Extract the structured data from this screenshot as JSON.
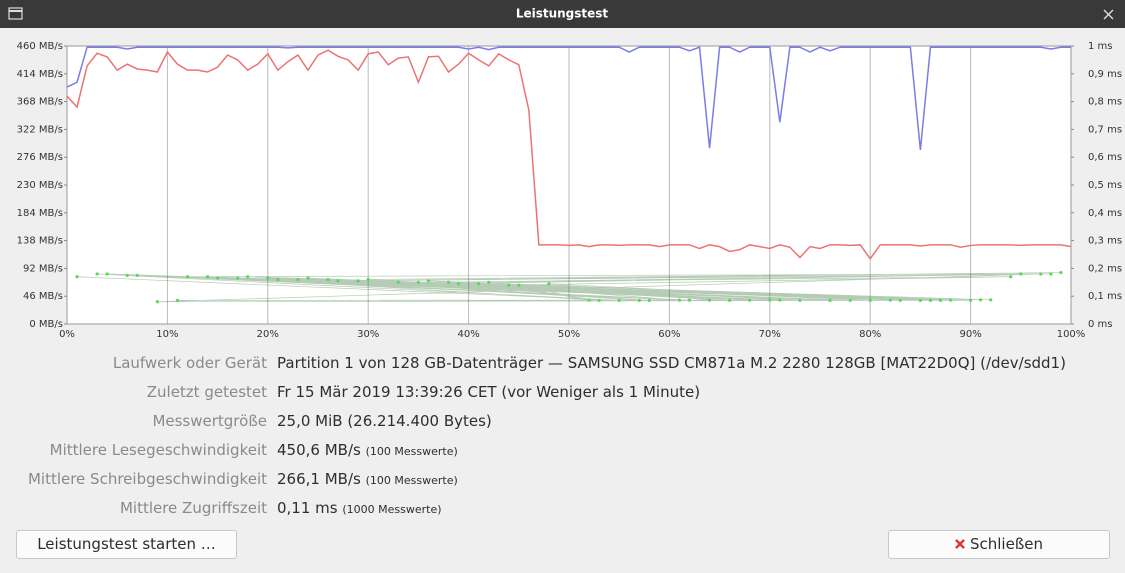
{
  "window": {
    "title": "Leistungstest"
  },
  "chart_data": {
    "type": "line",
    "x": [
      0,
      1,
      2,
      3,
      4,
      5,
      6,
      7,
      8,
      9,
      10,
      11,
      12,
      13,
      14,
      15,
      16,
      17,
      18,
      19,
      20,
      21,
      22,
      23,
      24,
      25,
      26,
      27,
      28,
      29,
      30,
      31,
      32,
      33,
      34,
      35,
      36,
      37,
      38,
      39,
      40,
      41,
      42,
      43,
      44,
      45,
      46,
      47,
      48,
      49,
      50,
      51,
      52,
      53,
      54,
      55,
      56,
      57,
      58,
      59,
      60,
      61,
      62,
      63,
      64,
      65,
      66,
      67,
      68,
      69,
      70,
      71,
      72,
      73,
      74,
      75,
      76,
      77,
      78,
      79,
      80,
      81,
      82,
      83,
      84,
      85,
      86,
      87,
      88,
      89,
      90,
      91,
      92,
      93,
      94,
      95,
      96,
      97,
      98,
      99,
      100
    ],
    "xlim": [
      0,
      100
    ],
    "xticks": [
      {
        "value": 0,
        "label": "0%"
      },
      {
        "value": 10,
        "label": "10%"
      },
      {
        "value": 20,
        "label": "20%"
      },
      {
        "value": 30,
        "label": "30%"
      },
      {
        "value": 40,
        "label": "40%"
      },
      {
        "value": 50,
        "label": "50%"
      },
      {
        "value": 60,
        "label": "60%"
      },
      {
        "value": 70,
        "label": "70%"
      },
      {
        "value": 80,
        "label": "80%"
      },
      {
        "value": 90,
        "label": "90%"
      },
      {
        "value": 100,
        "label": "100%"
      }
    ],
    "ylim": [
      0,
      460
    ],
    "yticks": [
      {
        "value": 0,
        "label": "0 MB/s"
      },
      {
        "value": 46,
        "label": "46 MB/s"
      },
      {
        "value": 92,
        "label": "92 MB/s"
      },
      {
        "value": 138,
        "label": "138 MB/s"
      },
      {
        "value": 184,
        "label": "184 MB/s"
      },
      {
        "value": 230,
        "label": "230 MB/s"
      },
      {
        "value": 276,
        "label": "276 MB/s"
      },
      {
        "value": 322,
        "label": "322 MB/s"
      },
      {
        "value": 368,
        "label": "368 MB/s"
      },
      {
        "value": 414,
        "label": "414 MB/s"
      },
      {
        "value": 460,
        "label": "460 MB/s"
      }
    ],
    "y2lim": [
      0,
      1
    ],
    "y2ticks": [
      {
        "value": 0,
        "label": "0 ms"
      },
      {
        "value": 0.1,
        "label": "0,1 ms"
      },
      {
        "value": 0.2,
        "label": "0,2 ms"
      },
      {
        "value": 0.3,
        "label": "0,3 ms"
      },
      {
        "value": 0.4,
        "label": "0,4 ms"
      },
      {
        "value": 0.5,
        "label": "0,5 ms"
      },
      {
        "value": 0.6,
        "label": "0,6 ms"
      },
      {
        "value": 0.7,
        "label": "0,7 ms"
      },
      {
        "value": 0.8,
        "label": "0,8 ms"
      },
      {
        "value": 0.9,
        "label": "0,9 ms"
      },
      {
        "value": 1,
        "label": "1 ms"
      }
    ],
    "grid": true,
    "series": [
      {
        "color": "#7b7bea",
        "values": [
          392,
          400,
          458,
          458,
          458,
          458,
          455,
          458,
          458,
          458,
          458,
          458,
          458,
          458,
          458,
          458,
          458,
          458,
          458,
          458,
          458,
          458,
          457,
          458,
          458,
          458,
          458,
          458,
          458,
          458,
          458,
          458,
          458,
          458,
          458,
          458,
          458,
          458,
          458,
          458,
          455,
          458,
          454,
          458,
          458,
          458,
          458,
          458,
          458,
          458,
          458,
          458,
          458,
          458,
          458,
          458,
          450,
          458,
          458,
          458,
          458,
          458,
          452,
          458,
          291,
          458,
          458,
          450,
          458,
          458,
          458,
          334,
          458,
          458,
          450,
          458,
          452,
          458,
          458,
          458,
          458,
          458,
          458,
          458,
          458,
          288,
          458,
          458,
          458,
          458,
          458,
          458,
          458,
          458,
          458,
          458,
          458,
          458,
          455,
          458,
          458
        ]
      },
      {
        "color": "#ec7373",
        "values": [
          377,
          359,
          427,
          448,
          442,
          420,
          430,
          422,
          420,
          417,
          450,
          430,
          420,
          420,
          417,
          425,
          445,
          437,
          420,
          430,
          447,
          420,
          434,
          445,
          420,
          445,
          453,
          443,
          437,
          420,
          447,
          450,
          429,
          440,
          442,
          400,
          442,
          443,
          417,
          430,
          448,
          437,
          427,
          447,
          437,
          429,
          354,
          131,
          131,
          131,
          130,
          131,
          128,
          131,
          131,
          130,
          131,
          131,
          131,
          128,
          131,
          131,
          131,
          125,
          131,
          128,
          120,
          123,
          131,
          128,
          125,
          131,
          127,
          110,
          128,
          125,
          131,
          131,
          130,
          131,
          108,
          131,
          131,
          131,
          131,
          129,
          131,
          131,
          131,
          127,
          130,
          131,
          131,
          131,
          131,
          130,
          131,
          131,
          131,
          131,
          128
        ]
      },
      {
        "color": "#5ad85a",
        "type": "scatter",
        "axis": "y2",
        "x": [
          1,
          55,
          3,
          70,
          6,
          85,
          9,
          97,
          12,
          62,
          15,
          78,
          18,
          92,
          21,
          58,
          24,
          82,
          27,
          99,
          30,
          66,
          33,
          88,
          36,
          73,
          39,
          95,
          42,
          52,
          45,
          80,
          48,
          64,
          11,
          90,
          20,
          71,
          4,
          86,
          26,
          57,
          35,
          94,
          44,
          68,
          14,
          83,
          29,
          98,
          38,
          61,
          7,
          76,
          23,
          91,
          41,
          53,
          17,
          87
        ],
        "values": [
          0.17,
          0.085,
          0.18,
          0.086,
          0.175,
          0.085,
          0.08,
          0.18,
          0.17,
          0.086,
          0.165,
          0.085,
          0.17,
          0.087,
          0.16,
          0.085,
          0.165,
          0.086,
          0.155,
          0.185,
          0.16,
          0.085,
          0.15,
          0.086,
          0.155,
          0.085,
          0.145,
          0.18,
          0.15,
          0.086,
          0.14,
          0.085,
          0.145,
          0.086,
          0.085,
          0.085,
          0.165,
          0.086,
          0.18,
          0.085,
          0.16,
          0.085,
          0.15,
          0.17,
          0.14,
          0.086,
          0.17,
          0.085,
          0.155,
          0.18,
          0.15,
          0.086,
          0.175,
          0.085,
          0.16,
          0.087,
          0.145,
          0.085,
          0.165,
          0.085
        ]
      }
    ]
  },
  "info": {
    "rows": [
      {
        "label": "Laufwerk oder Gerät",
        "value": "Partition 1 von 128 GB-Datenträger — SAMSUNG SSD CM871a M.2 2280 128GB [MAT22D0Q] (/dev/sdd1)"
      },
      {
        "label": "Zuletzt getestet",
        "value": "Fr 15 Mär 2019 13:39:26 CET (vor Weniger als 1 Minute)"
      },
      {
        "label": "Messwertgröße",
        "value": "25,0 MiB (26.214.400 Bytes)"
      },
      {
        "label": "Mittlere Lesegeschwindigkeit",
        "value": "450,6 MB/s",
        "note": "(100 Messwerte)"
      },
      {
        "label": "Mittlere Schreibgeschwindigkeit",
        "value": "266,1 MB/s",
        "note": "(100 Messwerte)"
      },
      {
        "label": "Mittlere Zugriffszeit",
        "value": "0,11 ms",
        "note": "(1000 Messwerte)"
      }
    ]
  },
  "buttons": {
    "start": "Leistungstest starten …",
    "close": "Schließen"
  }
}
